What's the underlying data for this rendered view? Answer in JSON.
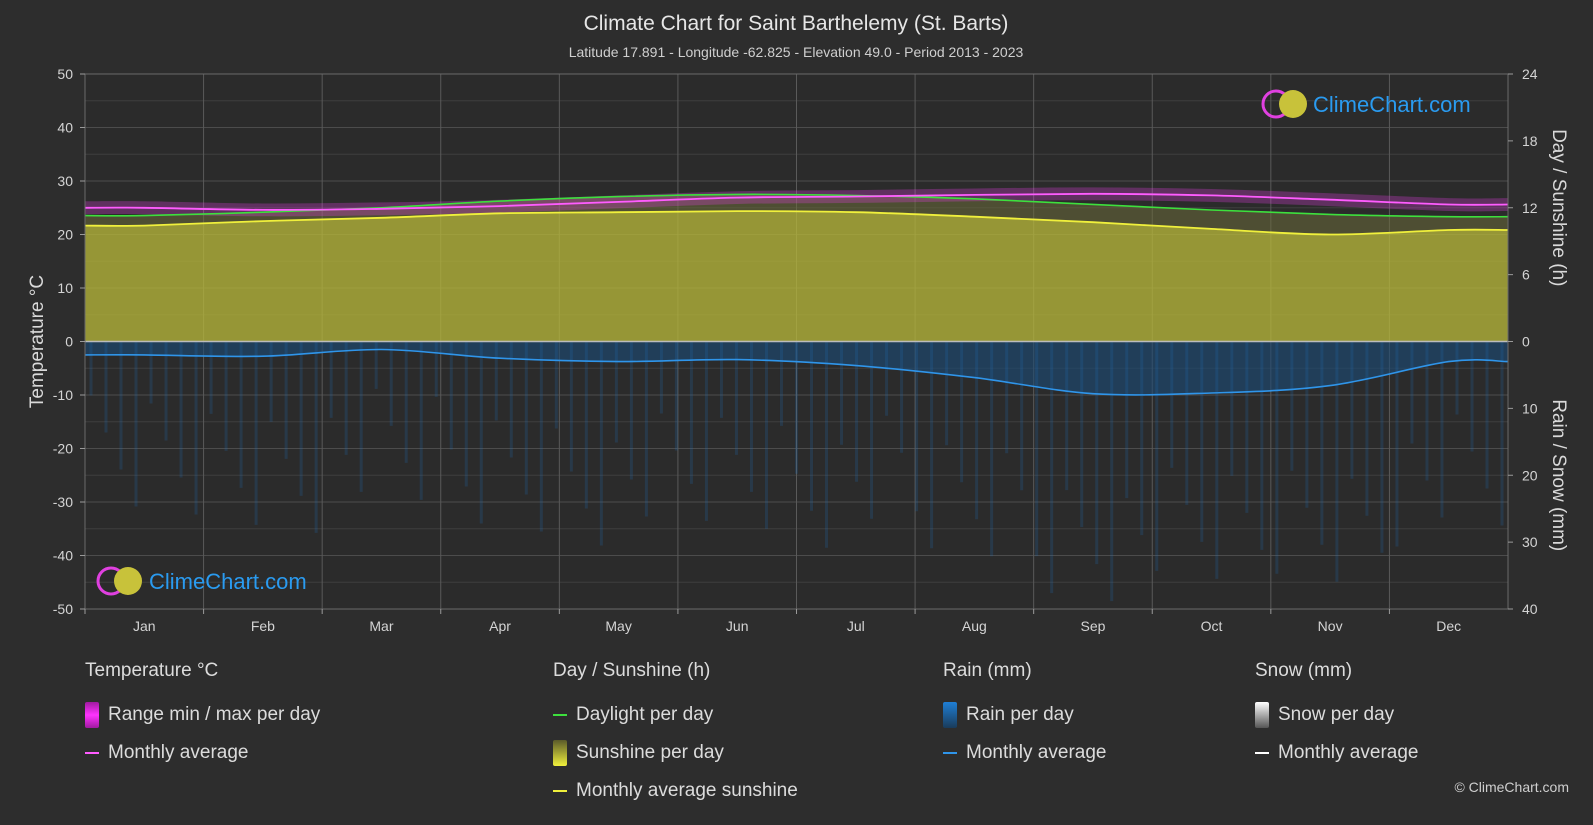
{
  "title": "Climate Chart for Saint Barthelemy (St. Barts)",
  "subtitle": "Latitude 17.891 - Longitude -62.825 - Elevation 49.0 - Period 2013 - 2023",
  "watermark": "ClimeChart.com",
  "copyright": "© ClimeChart.com",
  "colors": {
    "background": "#2d2d2d",
    "temp_range": "#e83ee8",
    "temp_avg": "#ff5cff",
    "daylight": "#3de03d",
    "sunshine_fill": "#b5b53a",
    "sunshine_avg": "#f0f03c",
    "rain": "#1f7fd6",
    "rain_avg": "#2f95ea",
    "snow": "#cfcfcf",
    "snow_avg": "#ffffff",
    "watermark": "#2a9bf0"
  },
  "chart_data": {
    "type": "area",
    "title": "Climate Chart for Saint Barthelemy (St. Barts)",
    "categories": [
      "Jan",
      "Feb",
      "Mar",
      "Apr",
      "May",
      "Jun",
      "Jul",
      "Aug",
      "Sep",
      "Oct",
      "Nov",
      "Dec"
    ],
    "ylabel_left": "Temperature °C",
    "ylabel_right_top": "Day / Sunshine (h)",
    "ylabel_right_bottom": "Rain / Snow (mm)",
    "y_left_ticks": [
      "50",
      "40",
      "30",
      "20",
      "10",
      "0",
      "-10",
      "-20",
      "-30",
      "-40",
      "-50"
    ],
    "y_right_top_ticks": [
      "24",
      "18",
      "12",
      "6",
      "0"
    ],
    "y_right_bottom_ticks": [
      "0",
      "10",
      "20",
      "30",
      "40"
    ],
    "ylim_temp": [
      -50,
      50
    ],
    "ylim_hours": [
      0,
      24
    ],
    "ylim_rain_mm": [
      0,
      40
    ],
    "grid": true,
    "series": [
      {
        "name": "Monthly average",
        "group": "Temperature °C",
        "values": [
          25.0,
          24.6,
          24.8,
          25.3,
          26.1,
          26.9,
          27.1,
          27.4,
          27.6,
          27.3,
          26.5,
          25.6
        ]
      },
      {
        "name": "Daylight per day",
        "group": "Day / Sunshine (h)",
        "values": [
          11.3,
          11.6,
          12.0,
          12.6,
          13.0,
          13.2,
          13.1,
          12.8,
          12.3,
          11.8,
          11.4,
          11.2
        ]
      },
      {
        "name": "Monthly average sunshine",
        "group": "Day / Sunshine (h)",
        "values": [
          10.4,
          10.8,
          11.1,
          11.5,
          11.6,
          11.7,
          11.6,
          11.2,
          10.7,
          10.1,
          9.6,
          10.0
        ]
      },
      {
        "name": "Monthly average",
        "group": "Rain (mm)",
        "values": [
          2.0,
          2.2,
          1.2,
          2.5,
          3.0,
          2.7,
          3.6,
          5.4,
          7.8,
          7.7,
          6.6,
          3.0
        ]
      }
    ]
  },
  "legend": {
    "temperature": {
      "heading": "Temperature °C",
      "items": [
        "Range min / max per day",
        "Monthly average"
      ]
    },
    "sunshine": {
      "heading": "Day / Sunshine (h)",
      "items": [
        "Daylight per day",
        "Sunshine per day",
        "Monthly average sunshine"
      ]
    },
    "rain": {
      "heading": "Rain (mm)",
      "items": [
        "Rain per day",
        "Monthly average"
      ]
    },
    "snow": {
      "heading": "Snow (mm)",
      "items": [
        "Snow per day",
        "Monthly average"
      ]
    }
  }
}
